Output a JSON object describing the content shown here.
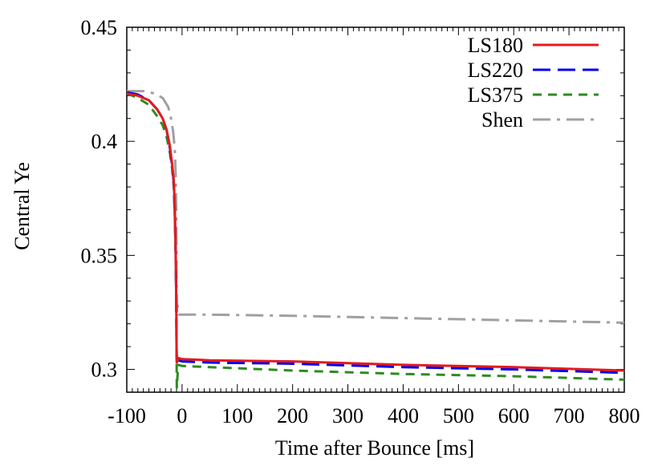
{
  "chart_data": {
    "type": "line",
    "title": "",
    "xlabel": "Time after Bounce [ms]",
    "ylabel": "Central Ye",
    "xlim": [
      -100,
      800
    ],
    "ylim": [
      0.29,
      0.45
    ],
    "xticks": [
      -100,
      0,
      100,
      200,
      300,
      400,
      500,
      600,
      700,
      800
    ],
    "xtick_labels": [
      "-100",
      "0",
      "100",
      "200",
      "300",
      "400",
      "500",
      "600",
      "700",
      "800"
    ],
    "yticks": [
      0.3,
      0.35,
      0.4,
      0.45
    ],
    "ytick_labels": [
      "0.3",
      "0.35",
      "0.4",
      "0.45"
    ],
    "grid": false,
    "legend_position": "top-right",
    "series": [
      {
        "name": "LS180",
        "color": "#e41a1c",
        "dash": "solid",
        "points": [
          [
            -100,
            0.421
          ],
          [
            -80,
            0.42
          ],
          [
            -60,
            0.418
          ],
          [
            -45,
            0.414
          ],
          [
            -35,
            0.41
          ],
          [
            -28,
            0.405
          ],
          [
            -22,
            0.398
          ],
          [
            -18,
            0.39
          ],
          [
            -15,
            0.383
          ],
          [
            -13,
            0.37
          ],
          [
            -11.5,
            0.35
          ],
          [
            -10.5,
            0.33
          ],
          [
            -10,
            0.31
          ],
          [
            -9.5,
            0.303
          ],
          [
            -7,
            0.305
          ],
          [
            0,
            0.3045
          ],
          [
            50,
            0.304
          ],
          [
            200,
            0.3035
          ],
          [
            400,
            0.302
          ],
          [
            600,
            0.301
          ],
          [
            800,
            0.2995
          ]
        ]
      },
      {
        "name": "LS220",
        "color": "#0000ee",
        "dash": "long-dash",
        "points": [
          [
            -100,
            0.4215
          ],
          [
            -80,
            0.4205
          ],
          [
            -60,
            0.418
          ],
          [
            -45,
            0.414
          ],
          [
            -35,
            0.41
          ],
          [
            -28,
            0.405
          ],
          [
            -22,
            0.397
          ],
          [
            -18,
            0.389
          ],
          [
            -15,
            0.382
          ],
          [
            -13,
            0.368
          ],
          [
            -11.5,
            0.35
          ],
          [
            -10.5,
            0.33
          ],
          [
            -10,
            0.31
          ],
          [
            -9.5,
            0.302
          ],
          [
            -7,
            0.304
          ],
          [
            0,
            0.3035
          ],
          [
            50,
            0.303
          ],
          [
            200,
            0.3025
          ],
          [
            400,
            0.301
          ],
          [
            600,
            0.3
          ],
          [
            800,
            0.2985
          ]
        ]
      },
      {
        "name": "LS375",
        "color": "#2e8b22",
        "dash": "short-dash",
        "points": [
          [
            -100,
            0.421
          ],
          [
            -80,
            0.419
          ],
          [
            -60,
            0.416
          ],
          [
            -45,
            0.411
          ],
          [
            -35,
            0.407
          ],
          [
            -28,
            0.402
          ],
          [
            -22,
            0.395
          ],
          [
            -18,
            0.388
          ],
          [
            -15,
            0.38
          ],
          [
            -13,
            0.366
          ],
          [
            -11.5,
            0.35
          ],
          [
            -10.5,
            0.33
          ],
          [
            -10,
            0.31
          ],
          [
            -9.5,
            0.292
          ],
          [
            -7,
            0.302
          ],
          [
            0,
            0.3015
          ],
          [
            50,
            0.301
          ],
          [
            200,
            0.2995
          ],
          [
            400,
            0.298
          ],
          [
            600,
            0.297
          ],
          [
            800,
            0.2955
          ]
        ]
      },
      {
        "name": "Shen",
        "color": "#a0a0a0",
        "dash": "dash-dot",
        "points": [
          [
            -100,
            0.422
          ],
          [
            -70,
            0.422
          ],
          [
            -50,
            0.421
          ],
          [
            -35,
            0.419
          ],
          [
            -25,
            0.415
          ],
          [
            -20,
            0.41
          ],
          [
            -16,
            0.404
          ],
          [
            -13,
            0.396
          ],
          [
            -11.5,
            0.385
          ],
          [
            -10.5,
            0.37
          ],
          [
            -10,
            0.34
          ],
          [
            -9.5,
            0.325
          ],
          [
            -8,
            0.328
          ],
          [
            -6,
            0.324
          ],
          [
            0,
            0.324
          ],
          [
            50,
            0.324
          ],
          [
            200,
            0.3235
          ],
          [
            400,
            0.3225
          ],
          [
            600,
            0.3215
          ],
          [
            800,
            0.3205
          ]
        ]
      }
    ]
  }
}
